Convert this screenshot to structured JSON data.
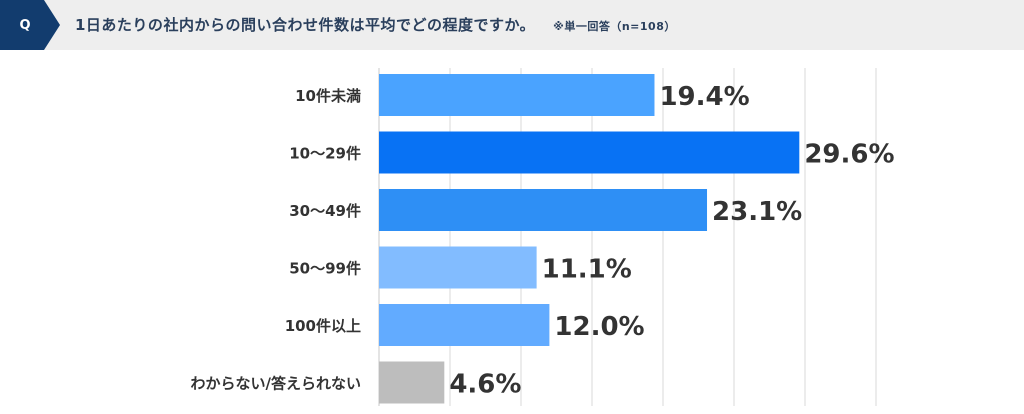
{
  "header": {
    "badge": "Q",
    "question": "1日あたりの社内からの問い合わせ件数は平均でどの程度ですか。",
    "note": "※単一回答（n=108）"
  },
  "chart_data": {
    "type": "bar",
    "orientation": "horizontal",
    "categories": [
      "10件未満",
      "10〜29件",
      "30〜49件",
      "50〜99件",
      "100件以上",
      "わからない/答えられない"
    ],
    "values": [
      19.4,
      29.6,
      23.1,
      11.1,
      12.0,
      4.6
    ],
    "labels": [
      "19.4%",
      "29.6%",
      "23.1%",
      "11.1%",
      "12.0%",
      "4.6%"
    ],
    "colors": [
      "#4aa3ff",
      "#0872f4",
      "#2e8ff5",
      "#82bcff",
      "#62abff",
      "#bdbdbd"
    ],
    "xlim": [
      0,
      35
    ],
    "grid": true
  }
}
